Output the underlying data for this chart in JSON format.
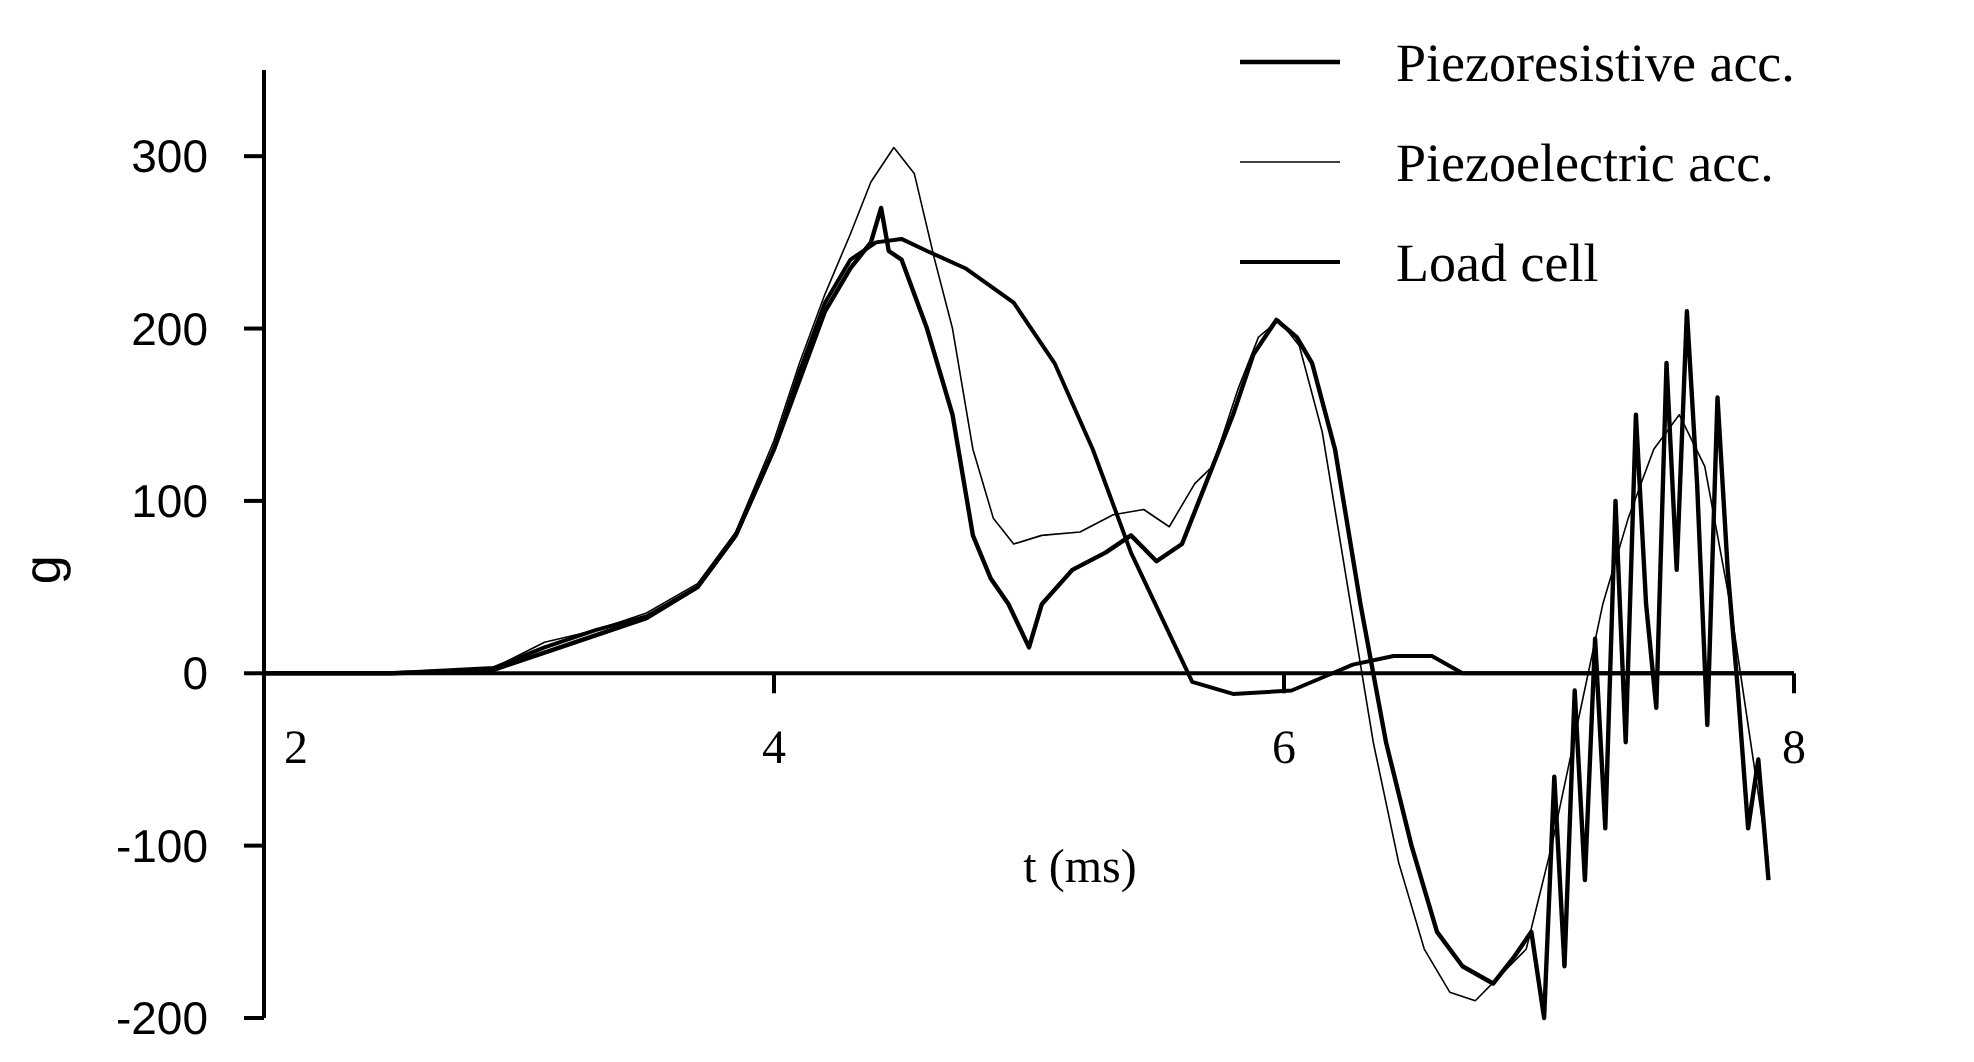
{
  "chart_data": {
    "type": "line",
    "xlabel": "t (ms)",
    "ylabel": "g",
    "xlim": [
      2,
      8
    ],
    "xticks": [
      2,
      4,
      6,
      8
    ],
    "ylim": [
      -200,
      350
    ],
    "yticks": [
      -200,
      -100,
      0,
      100,
      200,
      300
    ],
    "legend": "top right",
    "grid": false,
    "series": [
      {
        "name": "Piezoresistive acc.",
        "color": "#000000",
        "x": [
          2,
          2.5,
          2.9,
          3.1,
          3.3,
          3.5,
          3.7,
          3.85,
          4.0,
          4.1,
          4.2,
          4.3,
          4.38,
          4.42,
          4.45,
          4.5,
          4.6,
          4.7,
          4.78,
          4.85,
          4.92,
          5.0,
          5.05,
          5.17,
          5.3,
          5.4,
          5.5,
          5.6,
          5.72,
          5.8,
          5.88,
          5.97,
          6.05,
          6.11,
          6.2,
          6.3,
          6.4,
          6.5,
          6.6,
          6.7,
          6.82,
          6.9,
          6.97,
          7.02,
          7.06,
          7.1,
          7.14,
          7.18,
          7.22,
          7.26,
          7.3,
          7.34,
          7.38,
          7.42,
          7.46,
          7.5,
          7.54,
          7.58,
          7.62,
          7.66,
          7.7,
          7.74,
          7.78,
          7.82,
          7.86,
          7.9
        ],
        "values": [
          0,
          0,
          2,
          12,
          22,
          32,
          50,
          80,
          130,
          170,
          210,
          235,
          250,
          270,
          245,
          240,
          200,
          150,
          80,
          55,
          40,
          15,
          40,
          60,
          70,
          80,
          65,
          75,
          120,
          150,
          185,
          205,
          195,
          180,
          130,
          40,
          -40,
          -100,
          -150,
          -170,
          -180,
          -165,
          -150,
          -200,
          -60,
          -170,
          -10,
          -120,
          20,
          -90,
          100,
          -40,
          150,
          40,
          -20,
          180,
          60,
          210,
          110,
          -30,
          160,
          60,
          -10,
          -90,
          -50,
          -120
        ]
      },
      {
        "name": "Piezoelectric acc.",
        "color": "#000000",
        "x": [
          2,
          2.5,
          2.9,
          3.1,
          3.3,
          3.5,
          3.7,
          3.85,
          4.0,
          4.1,
          4.2,
          4.3,
          4.38,
          4.47,
          4.55,
          4.63,
          4.7,
          4.78,
          4.86,
          4.94,
          5.05,
          5.2,
          5.33,
          5.45,
          5.55,
          5.65,
          5.72,
          5.82,
          5.9,
          5.98,
          6.06,
          6.15,
          6.25,
          6.35,
          6.45,
          6.55,
          6.65,
          6.75,
          6.85,
          6.95,
          7.05,
          7.15,
          7.25,
          7.35,
          7.45,
          7.55,
          7.65,
          7.75,
          7.85,
          7.9
        ],
        "values": [
          0,
          0,
          3,
          18,
          25,
          35,
          52,
          82,
          135,
          180,
          220,
          255,
          285,
          305,
          290,
          240,
          200,
          130,
          90,
          75,
          80,
          82,
          92,
          95,
          85,
          110,
          120,
          165,
          195,
          205,
          190,
          140,
          50,
          -40,
          -110,
          -160,
          -185,
          -190,
          -175,
          -160,
          -100,
          -30,
          40,
          90,
          130,
          150,
          120,
          40,
          -60,
          -110
        ]
      },
      {
        "name": "Load cell",
        "color": "#000000",
        "x": [
          2,
          2.5,
          2.9,
          3.1,
          3.3,
          3.5,
          3.7,
          3.85,
          4.0,
          4.1,
          4.2,
          4.3,
          4.4,
          4.5,
          4.6,
          4.75,
          4.94,
          5.1,
          5.25,
          5.4,
          5.56,
          5.64,
          5.8,
          6.03,
          6.19,
          6.27,
          6.43,
          6.58,
          6.7,
          7.0,
          7.5,
          8.0
        ],
        "values": [
          0,
          0,
          3,
          15,
          25,
          33,
          50,
          80,
          130,
          175,
          215,
          240,
          250,
          252,
          245,
          235,
          215,
          180,
          130,
          70,
          20,
          -5,
          -12,
          -10,
          0,
          5,
          10,
          10,
          0,
          0,
          0,
          0
        ]
      }
    ]
  }
}
